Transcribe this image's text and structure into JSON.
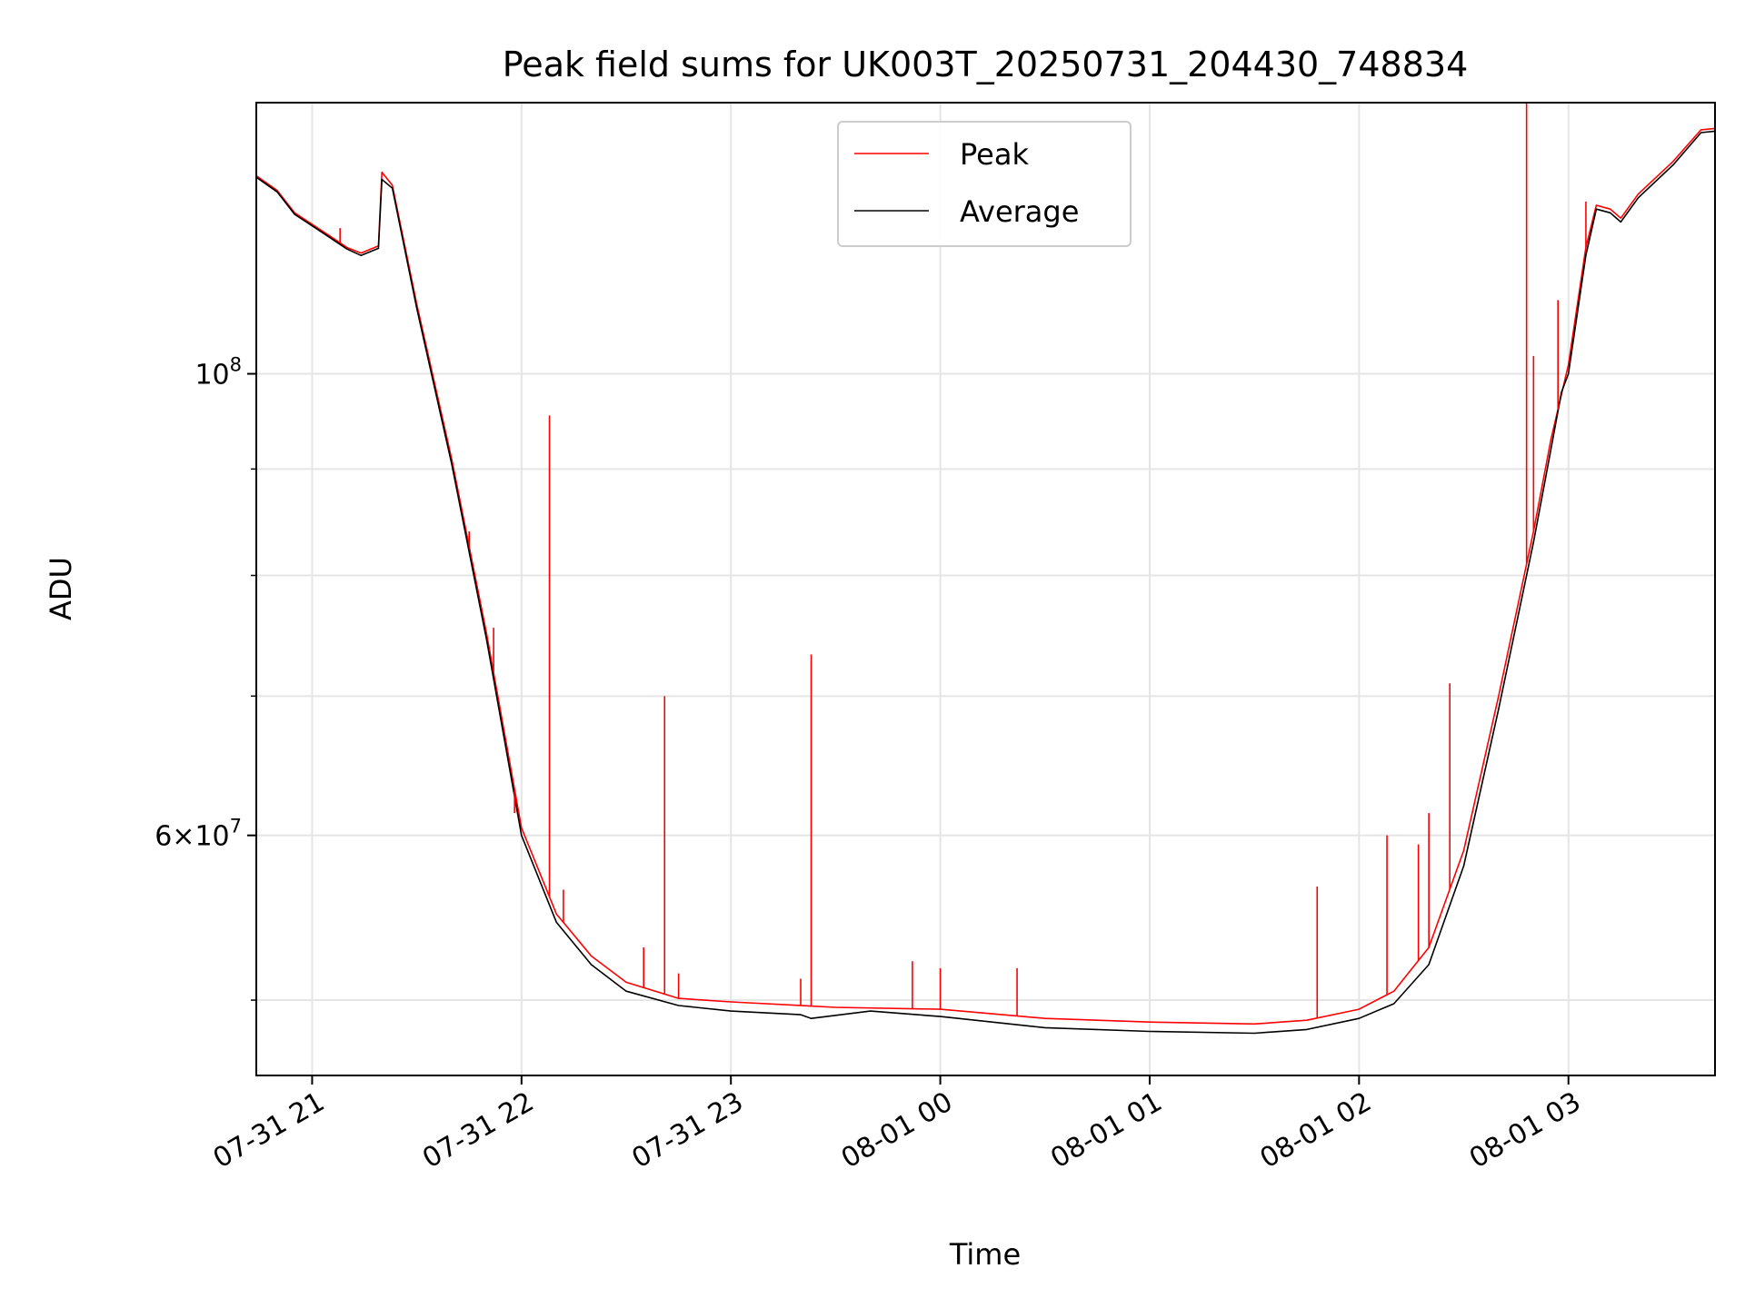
{
  "chart_data": {
    "type": "line",
    "title": "Peak field sums for UK003T_20250731_204430_748834",
    "xlabel": "Time",
    "ylabel": "ADU",
    "y_scale": "log",
    "grid": true,
    "legend_position": "upper-center",
    "xlim": [
      "2025-07-31 20:44",
      "2025-08-01 03:42"
    ],
    "ylim": [
      46000000,
      135000000
    ],
    "x_ticks": [
      {
        "t": "2025-07-31 21:00",
        "label": "07-31 21"
      },
      {
        "t": "2025-07-31 22:00",
        "label": "07-31 22"
      },
      {
        "t": "2025-07-31 23:00",
        "label": "07-31 23"
      },
      {
        "t": "2025-08-01 00:00",
        "label": "08-01 00"
      },
      {
        "t": "2025-08-01 01:00",
        "label": "08-01 01"
      },
      {
        "t": "2025-08-01 02:00",
        "label": "08-01 02"
      },
      {
        "t": "2025-08-01 03:00",
        "label": "08-01 03"
      }
    ],
    "y_major_ticks": [
      {
        "value": 100000000,
        "base": "10",
        "exp": "8"
      },
      {
        "value": 60000000,
        "mant": "6",
        "exp": "7"
      }
    ],
    "y_minor_ticks": [
      50000000,
      70000000,
      80000000,
      90000000
    ],
    "series": [
      {
        "name": "Peak",
        "color": "#ff0000",
        "base": [
          [
            "2025-07-31 20:44",
            124500000
          ],
          [
            "2025-07-31 20:50",
            122500000
          ],
          [
            "2025-07-31 20:55",
            119500000
          ],
          [
            "2025-07-31 21:00",
            118000000
          ],
          [
            "2025-07-31 21:05",
            116500000
          ],
          [
            "2025-07-31 21:10",
            115000000
          ],
          [
            "2025-07-31 21:14",
            114300000
          ],
          [
            "2025-07-31 21:19",
            115200000
          ],
          [
            "2025-07-31 21:20",
            125000000
          ],
          [
            "2025-07-31 21:23",
            123200000
          ],
          [
            "2025-07-31 21:30",
            108000000
          ],
          [
            "2025-07-31 21:40",
            91000000
          ],
          [
            "2025-07-31 21:50",
            75000000
          ],
          [
            "2025-07-31 22:00",
            60500000
          ],
          [
            "2025-07-31 22:10",
            55000000
          ],
          [
            "2025-07-31 22:20",
            52500000
          ],
          [
            "2025-07-31 22:30",
            51000000
          ],
          [
            "2025-07-31 22:45",
            50100000
          ],
          [
            "2025-07-31 23:00",
            49900000
          ],
          [
            "2025-07-31 23:30",
            49600000
          ],
          [
            "2025-08-01 00:00",
            49500000
          ],
          [
            "2025-08-01 00:30",
            49000000
          ],
          [
            "2025-08-01 01:00",
            48800000
          ],
          [
            "2025-08-01 01:30",
            48700000
          ],
          [
            "2025-08-01 01:45",
            48900000
          ],
          [
            "2025-08-01 02:00",
            49500000
          ],
          [
            "2025-08-01 02:10",
            50500000
          ],
          [
            "2025-08-01 02:20",
            53000000
          ],
          [
            "2025-08-01 02:30",
            59000000
          ],
          [
            "2025-08-01 02:40",
            70000000
          ],
          [
            "2025-08-01 02:50",
            84000000
          ],
          [
            "2025-08-01 02:55",
            93000000
          ],
          [
            "2025-08-01 03:00",
            101000000
          ],
          [
            "2025-08-01 03:05",
            115000000
          ],
          [
            "2025-08-01 03:08",
            120500000
          ],
          [
            "2025-08-01 03:12",
            120000000
          ],
          [
            "2025-08-01 03:15",
            118800000
          ],
          [
            "2025-08-01 03:20",
            122000000
          ],
          [
            "2025-08-01 03:30",
            126500000
          ],
          [
            "2025-08-01 03:38",
            131000000
          ],
          [
            "2025-08-01 03:42",
            131200000
          ]
        ],
        "spikes": [
          [
            "2025-07-31 21:08",
            117500000
          ],
          [
            "2025-07-31 21:45",
            84000000
          ],
          [
            "2025-07-31 21:52",
            75500000
          ],
          [
            "2025-07-31 21:58",
            61500000
          ],
          [
            "2025-07-31 22:08",
            95500000
          ],
          [
            "2025-07-31 22:12",
            56500000
          ],
          [
            "2025-07-31 22:35",
            53000000
          ],
          [
            "2025-07-31 22:41",
            70000000
          ],
          [
            "2025-07-31 22:45",
            51500000
          ],
          [
            "2025-07-31 23:20",
            51200000
          ],
          [
            "2025-07-31 23:23",
            73300000
          ],
          [
            "2025-07-31 23:52",
            52200000
          ],
          [
            "2025-08-01 00:00",
            51800000
          ],
          [
            "2025-08-01 00:22",
            51800000
          ],
          [
            "2025-08-01 01:48",
            56700000
          ],
          [
            "2025-08-01 02:08",
            60000000
          ],
          [
            "2025-08-01 02:17",
            59400000
          ],
          [
            "2025-08-01 02:20",
            61500000
          ],
          [
            "2025-08-01 02:26",
            71000000
          ],
          [
            "2025-08-01 02:48",
            135000000
          ],
          [
            "2025-08-01 02:50",
            102000000
          ],
          [
            "2025-08-01 02:57",
            108500000
          ],
          [
            "2025-08-01 03:05",
            121000000
          ]
        ]
      },
      {
        "name": "Average",
        "color": "#000000",
        "base": [
          [
            "2025-07-31 20:44",
            124300000
          ],
          [
            "2025-07-31 20:50",
            122300000
          ],
          [
            "2025-07-31 20:55",
            119300000
          ],
          [
            "2025-07-31 21:00",
            117800000
          ],
          [
            "2025-07-31 21:05",
            116300000
          ],
          [
            "2025-07-31 21:10",
            114800000
          ],
          [
            "2025-07-31 21:14",
            114000000
          ],
          [
            "2025-07-31 21:19",
            114900000
          ],
          [
            "2025-07-31 21:20",
            124000000
          ],
          [
            "2025-07-31 21:23",
            122800000
          ],
          [
            "2025-07-31 21:30",
            107500000
          ],
          [
            "2025-07-31 21:40",
            90500000
          ],
          [
            "2025-07-31 21:50",
            74500000
          ],
          [
            "2025-07-31 22:00",
            60000000
          ],
          [
            "2025-07-31 22:10",
            54500000
          ],
          [
            "2025-07-31 22:20",
            52000000
          ],
          [
            "2025-07-31 22:30",
            50500000
          ],
          [
            "2025-07-31 22:45",
            49700000
          ],
          [
            "2025-07-31 23:00",
            49400000
          ],
          [
            "2025-07-31 23:20",
            49200000
          ],
          [
            "2025-07-31 23:23",
            49000000
          ],
          [
            "2025-07-31 23:40",
            49400000
          ],
          [
            "2025-08-01 00:00",
            49100000
          ],
          [
            "2025-08-01 00:30",
            48500000
          ],
          [
            "2025-08-01 01:00",
            48300000
          ],
          [
            "2025-08-01 01:30",
            48200000
          ],
          [
            "2025-08-01 01:45",
            48400000
          ],
          [
            "2025-08-01 02:00",
            49000000
          ],
          [
            "2025-08-01 02:10",
            49800000
          ],
          [
            "2025-08-01 02:20",
            52000000
          ],
          [
            "2025-08-01 02:30",
            58000000
          ],
          [
            "2025-08-01 02:40",
            69000000
          ],
          [
            "2025-08-01 02:50",
            83000000
          ],
          [
            "2025-08-01 02:55",
            92000000
          ],
          [
            "2025-08-01 02:58",
            98000000
          ],
          [
            "2025-08-01 03:00",
            100000000
          ],
          [
            "2025-08-01 03:05",
            114000000
          ],
          [
            "2025-08-01 03:08",
            120000000
          ],
          [
            "2025-08-01 03:12",
            119500000
          ],
          [
            "2025-08-01 03:15",
            118300000
          ],
          [
            "2025-08-01 03:20",
            121500000
          ],
          [
            "2025-08-01 03:30",
            126000000
          ],
          [
            "2025-08-01 03:38",
            130600000
          ],
          [
            "2025-08-01 03:42",
            130800000
          ]
        ]
      }
    ]
  }
}
